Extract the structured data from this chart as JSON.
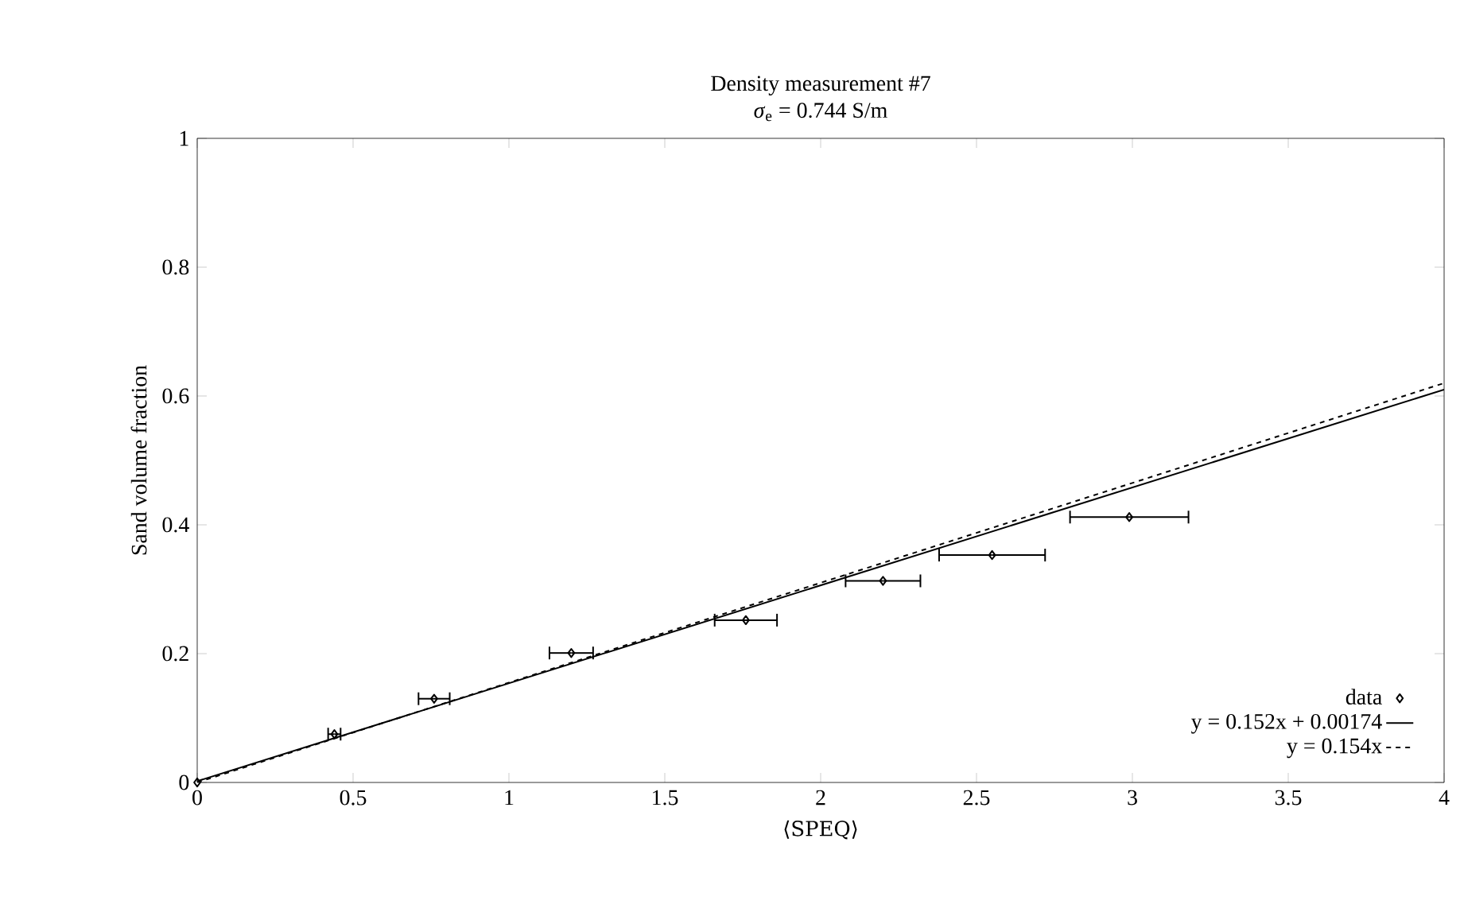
{
  "chart_data": {
    "type": "scatter",
    "title": "Density measurement #7",
    "subtitle": "*σ*$_{e}$ = 0.744 S/m",
    "xlabel": "⟨SPEQ⟩",
    "ylabel": "Sand volume fraction",
    "xlim": [
      0,
      4
    ],
    "ylim": [
      0,
      1
    ],
    "xticks": [
      0,
      0.5,
      1,
      1.5,
      2,
      2.5,
      3,
      3.5,
      4
    ],
    "yticks": [
      0,
      0.2,
      0.4,
      0.6,
      0.8,
      1
    ],
    "legend": "bottom right",
    "series": [
      {
        "name": "data",
        "marker": "diamond",
        "color": "#000000",
        "x": [
          0,
          0.44,
          0.76,
          1.2,
          1.76,
          2.2,
          2.55,
          2.99
        ],
        "values": [
          0,
          0.075,
          0.13,
          0.201,
          0.252,
          0.313,
          0.353,
          0.412
        ],
        "xerrors": [
          null,
          0.02,
          0.05,
          0.07,
          0.1,
          0.12,
          0.17,
          0.19
        ]
      },
      {
        "name": "y = 0.152x + 0.00174",
        "type": "line",
        "line_style": "solid",
        "color": "#000000",
        "x": [
          0,
          4
        ],
        "values": [
          0.002,
          0.61
        ]
      },
      {
        "name": "y = 0.154x",
        "type": "line",
        "line_style": "dashed",
        "color": "#000000",
        "x": [
          0,
          4
        ],
        "values": [
          0,
          0.62
        ]
      }
    ]
  }
}
